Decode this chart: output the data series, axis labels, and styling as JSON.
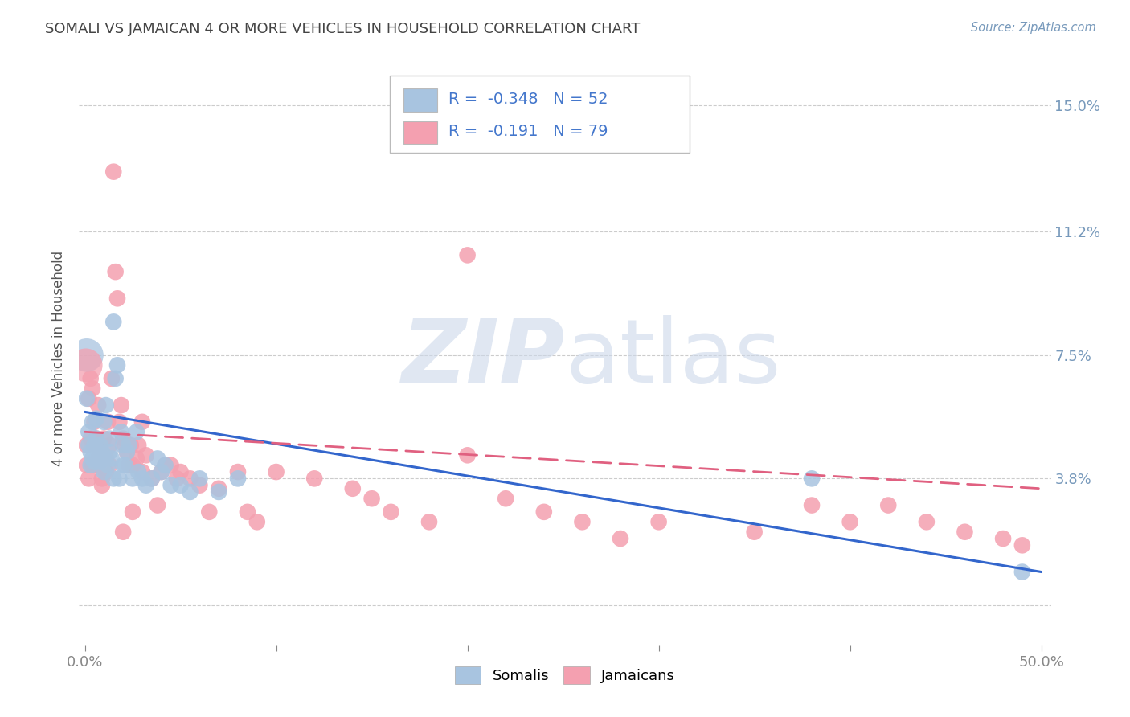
{
  "title": "SOMALI VS JAMAICAN 4 OR MORE VEHICLES IN HOUSEHOLD CORRELATION CHART",
  "source": "Source: ZipAtlas.com",
  "ylabel": "4 or more Vehicles in Household",
  "ytick_values": [
    0.0,
    0.038,
    0.075,
    0.112,
    0.15
  ],
  "ytick_labels": [
    "",
    "3.8%",
    "7.5%",
    "11.2%",
    "15.0%"
  ],
  "xlim": [
    -0.003,
    0.505
  ],
  "ylim": [
    -0.012,
    0.16
  ],
  "xtick_left_label": "0.0%",
  "xtick_right_label": "50.0%",
  "watermark_zip": "ZIP",
  "watermark_atlas": "atlas",
  "legend_somali_R": "-0.348",
  "legend_somali_N": "52",
  "legend_jamaican_R": "-0.191",
  "legend_jamaican_N": "79",
  "somali_color": "#a8c4e0",
  "jamaican_color": "#f4a0b0",
  "somali_line_color": "#3366cc",
  "jamaican_line_color": "#e06080",
  "legend_text_color": "#4477cc",
  "title_color": "#444444",
  "source_color": "#7799bb",
  "ytick_color": "#7799bb",
  "xtick_color": "#888888",
  "grid_color": "#cccccc",
  "somali_x": [
    0.001,
    0.002,
    0.002,
    0.003,
    0.003,
    0.004,
    0.004,
    0.005,
    0.005,
    0.006,
    0.006,
    0.007,
    0.007,
    0.008,
    0.008,
    0.009,
    0.01,
    0.01,
    0.011,
    0.012,
    0.013,
    0.013,
    0.014,
    0.015,
    0.016,
    0.017,
    0.018,
    0.019,
    0.02,
    0.021,
    0.022,
    0.023,
    0.025,
    0.027,
    0.028,
    0.03,
    0.032,
    0.035,
    0.038,
    0.04,
    0.042,
    0.045,
    0.05,
    0.055,
    0.06,
    0.07,
    0.08,
    0.01,
    0.015,
    0.02,
    0.38,
    0.49
  ],
  "somali_y": [
    0.062,
    0.052,
    0.048,
    0.046,
    0.042,
    0.055,
    0.044,
    0.048,
    0.043,
    0.056,
    0.05,
    0.046,
    0.044,
    0.048,
    0.043,
    0.046,
    0.055,
    0.044,
    0.06,
    0.042,
    0.05,
    0.046,
    0.044,
    0.085,
    0.068,
    0.072,
    0.038,
    0.052,
    0.048,
    0.042,
    0.046,
    0.048,
    0.038,
    0.052,
    0.04,
    0.038,
    0.036,
    0.038,
    0.044,
    0.04,
    0.042,
    0.036,
    0.036,
    0.034,
    0.038,
    0.034,
    0.038,
    0.04,
    0.038,
    0.042,
    0.038,
    0.01
  ],
  "jamaican_x": [
    0.001,
    0.001,
    0.002,
    0.002,
    0.003,
    0.003,
    0.004,
    0.004,
    0.005,
    0.005,
    0.006,
    0.006,
    0.007,
    0.007,
    0.008,
    0.008,
    0.009,
    0.009,
    0.01,
    0.01,
    0.011,
    0.011,
    0.012,
    0.013,
    0.013,
    0.014,
    0.015,
    0.016,
    0.017,
    0.018,
    0.019,
    0.02,
    0.021,
    0.022,
    0.023,
    0.024,
    0.025,
    0.027,
    0.028,
    0.03,
    0.03,
    0.032,
    0.035,
    0.038,
    0.04,
    0.042,
    0.045,
    0.048,
    0.05,
    0.055,
    0.06,
    0.065,
    0.07,
    0.08,
    0.085,
    0.09,
    0.1,
    0.12,
    0.14,
    0.15,
    0.16,
    0.18,
    0.2,
    0.22,
    0.24,
    0.26,
    0.28,
    0.3,
    0.35,
    0.38,
    0.4,
    0.42,
    0.44,
    0.46,
    0.2,
    0.02,
    0.025,
    0.48,
    0.49
  ],
  "jamaican_y": [
    0.048,
    0.042,
    0.062,
    0.038,
    0.05,
    0.068,
    0.065,
    0.042,
    0.055,
    0.042,
    0.048,
    0.05,
    0.06,
    0.044,
    0.046,
    0.048,
    0.038,
    0.036,
    0.045,
    0.05,
    0.044,
    0.04,
    0.055,
    0.042,
    0.048,
    0.068,
    0.13,
    0.1,
    0.092,
    0.055,
    0.06,
    0.05,
    0.048,
    0.046,
    0.042,
    0.048,
    0.042,
    0.044,
    0.048,
    0.055,
    0.04,
    0.045,
    0.038,
    0.03,
    0.04,
    0.042,
    0.042,
    0.038,
    0.04,
    0.038,
    0.036,
    0.028,
    0.035,
    0.04,
    0.028,
    0.025,
    0.04,
    0.038,
    0.035,
    0.032,
    0.028,
    0.025,
    0.045,
    0.032,
    0.028,
    0.025,
    0.02,
    0.025,
    0.022,
    0.03,
    0.025,
    0.03,
    0.025,
    0.022,
    0.105,
    0.022,
    0.028,
    0.02,
    0.018
  ],
  "big_somali_x": [
    0.001
  ],
  "big_somali_y": [
    0.075
  ],
  "big_jamaican_x": [
    0.0005
  ],
  "big_jamaican_y": [
    0.072
  ],
  "somali_line_x": [
    0.0,
    0.5
  ],
  "somali_line_y": [
    0.058,
    0.01
  ],
  "jamaican_line_x": [
    0.0,
    0.5
  ],
  "jamaican_line_y": [
    0.052,
    0.035
  ]
}
